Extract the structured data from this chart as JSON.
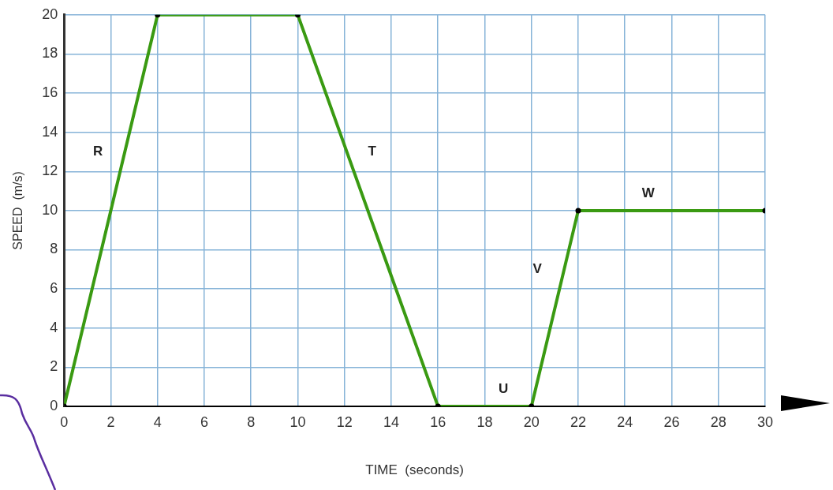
{
  "chart_data": {
    "type": "line",
    "xlabel": "TIME  (seconds)",
    "ylabel": "SPEED  (m/s)",
    "x": [
      0,
      4,
      10,
      16,
      20,
      22,
      30
    ],
    "series": [
      {
        "color": "#3a9a12",
        "values": [
          0,
          20,
          20,
          0,
          0,
          10,
          10
        ]
      }
    ],
    "xlim": [
      0,
      30
    ],
    "xticks": [
      0,
      2,
      4,
      6,
      8,
      10,
      12,
      14,
      16,
      18,
      20,
      22,
      24,
      26,
      28,
      30
    ],
    "ylim": [
      0,
      20
    ],
    "yticks": [
      0,
      2,
      4,
      6,
      8,
      10,
      12,
      14,
      16,
      18,
      20
    ],
    "grid": true,
    "legend": false,
    "marker": "circle",
    "line_style": "solid",
    "annotations": [
      {
        "text": "R",
        "x": 2.6,
        "y": 13
      },
      {
        "text": "T",
        "x": 12.1,
        "y": 13
      },
      {
        "text": "U",
        "x": 18.8,
        "y": 0
      },
      {
        "text": "V",
        "x": 21.4,
        "y": 7
      },
      {
        "text": "W",
        "x": 25,
        "y": 10
      }
    ]
  }
}
